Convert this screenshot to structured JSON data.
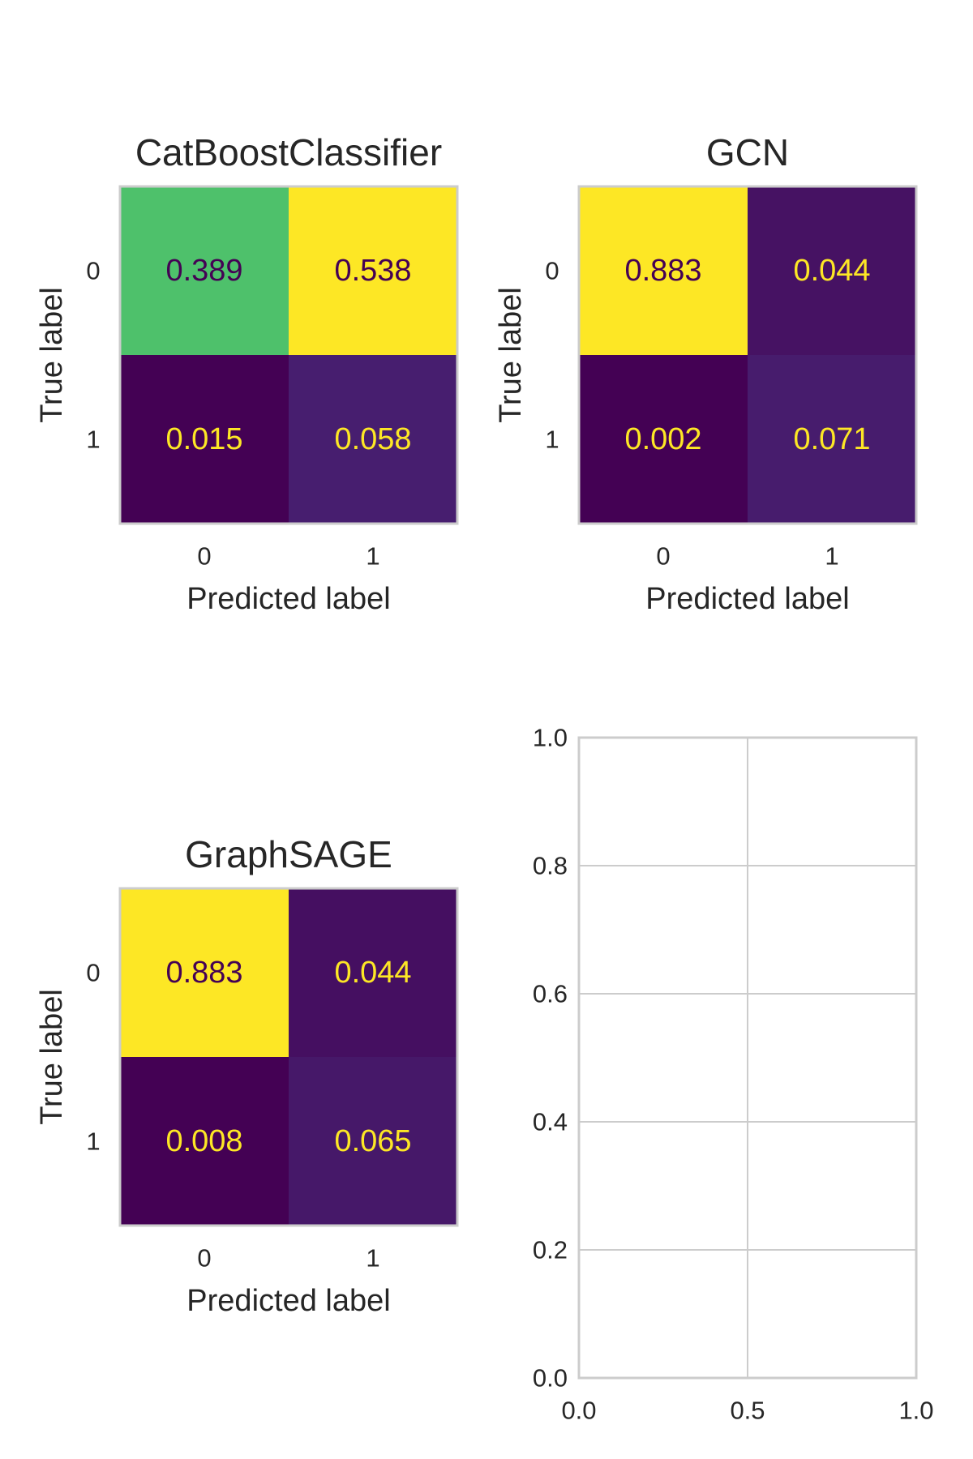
{
  "chart_data": [
    {
      "type": "heatmap",
      "title": "CatBoostClassifier",
      "xlabel": "Predicted label",
      "ylabel": "True label",
      "x_categories": [
        "0",
        "1"
      ],
      "y_categories": [
        "0",
        "1"
      ],
      "values": [
        [
          0.389,
          0.538
        ],
        [
          0.015,
          0.058
        ]
      ],
      "value_labels": [
        [
          "0.389",
          "0.538"
        ],
        [
          "0.015",
          "0.058"
        ]
      ],
      "colormap": "viridis",
      "color_range": [
        0.015,
        0.538
      ]
    },
    {
      "type": "heatmap",
      "title": "GCN",
      "xlabel": "Predicted label",
      "ylabel": "True label",
      "x_categories": [
        "0",
        "1"
      ],
      "y_categories": [
        "0",
        "1"
      ],
      "values": [
        [
          0.883,
          0.044
        ],
        [
          0.002,
          0.071
        ]
      ],
      "value_labels": [
        [
          "0.883",
          "0.044"
        ],
        [
          "0.002",
          "0.071"
        ]
      ],
      "colormap": "viridis",
      "color_range": [
        0.002,
        0.883
      ]
    },
    {
      "type": "heatmap",
      "title": "GraphSAGE",
      "xlabel": "Predicted label",
      "ylabel": "True label",
      "x_categories": [
        "0",
        "1"
      ],
      "y_categories": [
        "0",
        "1"
      ],
      "values": [
        [
          0.883,
          0.044
        ],
        [
          0.008,
          0.065
        ]
      ],
      "value_labels": [
        [
          "0.883",
          "0.044"
        ],
        [
          "0.008",
          "0.065"
        ]
      ],
      "colormap": "viridis",
      "color_range": [
        0.008,
        0.883
      ]
    },
    {
      "type": "line",
      "title": "",
      "xlabel": "",
      "ylabel": "",
      "series": [],
      "xlim": [
        0.0,
        1.0
      ],
      "ylim": [
        0.0,
        1.0
      ],
      "x_ticks": [
        "0.0",
        "0.5",
        "1.0"
      ],
      "y_ticks": [
        "0.0",
        "0.2",
        "0.4",
        "0.6",
        "0.8",
        "1.0"
      ],
      "grid": true
    }
  ],
  "colors": {
    "frame": "#cccccc",
    "grid": "#cccccc",
    "text": "#262626",
    "annotation_dark": "#440154",
    "annotation_light": "#fde725"
  }
}
